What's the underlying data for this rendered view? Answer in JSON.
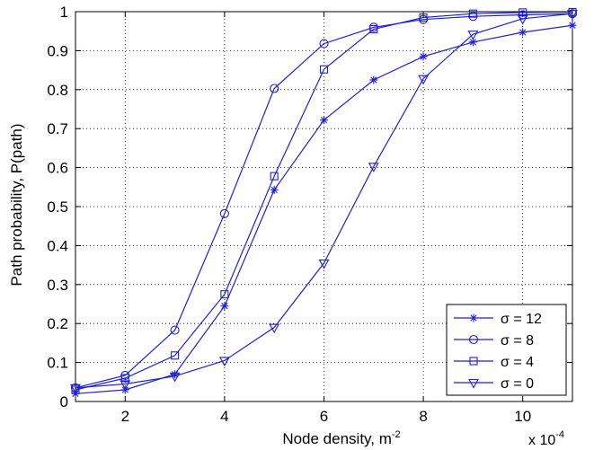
{
  "chart_data": {
    "type": "line",
    "xlabel": "Node density, m",
    "xlabel_superscript": "-2",
    "ylabel": "Path probability, P(path)",
    "x_multiplier": "x 10",
    "x_multiplier_exponent": "-4",
    "xlim": [
      1,
      11
    ],
    "ylim": [
      0,
      1
    ],
    "xticks": [
      2,
      4,
      6,
      8,
      10
    ],
    "yticks": [
      0,
      0.1,
      0.2,
      0.3,
      0.4,
      0.5,
      0.6,
      0.7,
      0.8,
      0.9,
      1
    ],
    "grid": true,
    "legend_position": "bottom-right",
    "line_color": "#1f1fd6",
    "x": [
      1,
      2,
      3,
      4,
      5,
      6,
      7,
      8,
      9,
      10,
      11
    ],
    "series": [
      {
        "name": "σ = 12",
        "marker": "asterisk",
        "values": [
          0.02,
          0.03,
          0.07,
          0.245,
          0.543,
          0.722,
          0.825,
          0.885,
          0.922,
          0.947,
          0.965
        ]
      },
      {
        "name": "σ = 8",
        "marker": "circle",
        "values": [
          0.035,
          0.067,
          0.183,
          0.482,
          0.803,
          0.918,
          0.96,
          0.98,
          0.988,
          0.992,
          0.995
        ]
      },
      {
        "name": "σ = 4",
        "marker": "square",
        "values": [
          0.03,
          0.06,
          0.118,
          0.275,
          0.578,
          0.852,
          0.955,
          0.985,
          0.995,
          0.998,
          0.999
        ]
      },
      {
        "name": "σ = 0",
        "marker": "triangle-down",
        "values": [
          0.035,
          0.045,
          0.065,
          0.105,
          0.19,
          0.355,
          0.603,
          0.828,
          0.942,
          0.982,
          0.995
        ]
      }
    ]
  }
}
